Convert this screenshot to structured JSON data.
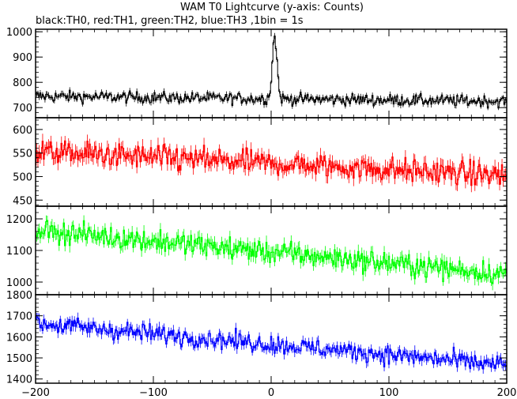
{
  "chart_data": {
    "type": "line",
    "title": "WAM T0 Lightcurve (y-axis: Counts)",
    "subtitle": "black:TH0, red:TH1, green:TH2, blue:TH3 ,1bin = 1s",
    "x": {
      "range": [
        -200,
        200
      ],
      "ticks": [
        -200,
        -100,
        0,
        100,
        200
      ],
      "bin": 1
    },
    "panels": [
      {
        "name": "TH0",
        "color": "#000000",
        "ylim": [
          660,
          1010
        ],
        "yticks": [
          700,
          800,
          900,
          1000
        ],
        "trend": [
          [
            -200,
            745
          ],
          [
            200,
            725
          ]
        ],
        "noise": 16,
        "err": 10,
        "burst": {
          "center": 3,
          "peak": 990,
          "width": 2
        }
      },
      {
        "name": "TH1",
        "color": "#ff0000",
        "ylim": [
          437,
          625
        ],
        "yticks": [
          450,
          500,
          550,
          600
        ],
        "trend": [
          [
            -200,
            553
          ],
          [
            200,
            502
          ]
        ],
        "noise": 18,
        "err": 13
      },
      {
        "name": "TH2",
        "color": "#00ff00",
        "ylim": [
          960,
          1240
        ],
        "yticks": [
          1000,
          1100,
          1200
        ],
        "trend": [
          [
            -200,
            1165
          ],
          [
            200,
            1025
          ]
        ],
        "noise": 24,
        "err": 17
      },
      {
        "name": "TH3",
        "color": "#0000ff",
        "ylim": [
          1380,
          1800
        ],
        "yticks": [
          1400,
          1500,
          1600,
          1700,
          1800
        ],
        "trend": [
          [
            -200,
            1665
          ],
          [
            200,
            1465
          ]
        ],
        "noise": 30,
        "err": 20
      }
    ]
  }
}
